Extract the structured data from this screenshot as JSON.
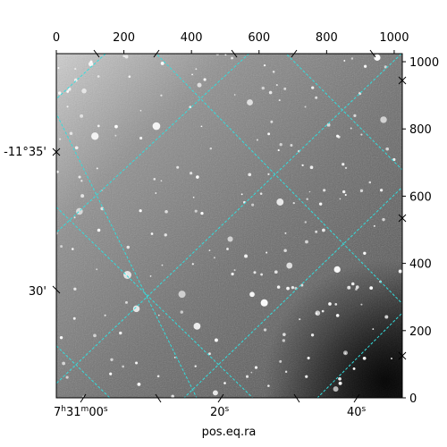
{
  "chart_data": {
    "type": "image",
    "xlabel": "pos.eq.ra",
    "ylabel": "",
    "pixel_axes": {
      "x": {
        "ticks": [
          0,
          200,
          400,
          600,
          800,
          1000
        ],
        "range": [
          0,
          1024
        ]
      },
      "y": {
        "ticks": [
          0,
          200,
          400,
          600,
          800,
          1000
        ],
        "range": [
          0,
          1024
        ]
      }
    },
    "world_axes": {
      "ra": {
        "ticks": [
          {
            "label_prefix": "7",
            "h": "h",
            "label_mid": "31",
            "m": "m",
            "label_main": "00",
            "s": "s"
          },
          {
            "label_main": "20",
            "s": "s"
          },
          {
            "label_main": "40",
            "s": "s"
          }
        ]
      },
      "dec": {
        "ticks": [
          {
            "label": "-11°35'"
          },
          {
            "label": "30'"
          }
        ]
      }
    },
    "grid": true,
    "grid_color": "#33dddd",
    "image_colormap": "gray"
  }
}
